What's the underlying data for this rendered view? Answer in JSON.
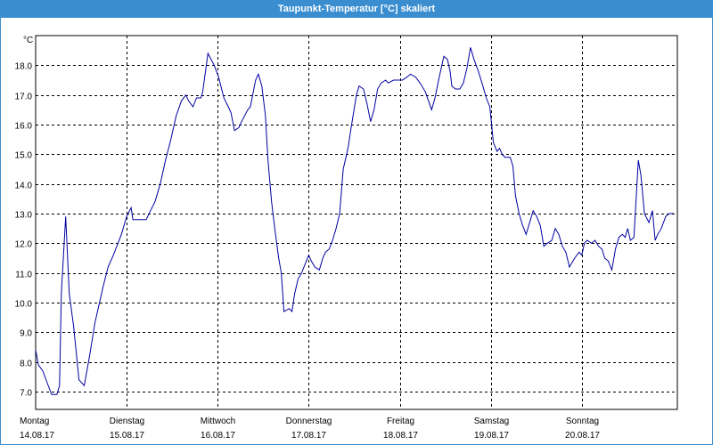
{
  "window": {
    "title": "Taupunkt-Temperatur [°C] skaliert"
  },
  "colors": {
    "titlebar": "#3a8ed0",
    "series": "#0000a0",
    "grid": "#000000"
  },
  "chart_data": {
    "type": "line",
    "title": "Taupunkt-Temperatur [°C] skaliert",
    "ylabel": "°C",
    "ylim": [
      6.4,
      19.0
    ],
    "y_ticks": [
      7.0,
      8.0,
      9.0,
      10.0,
      11.0,
      12.0,
      13.0,
      14.0,
      15.0,
      16.0,
      17.0,
      18.0
    ],
    "xlim": [
      0,
      7.05
    ],
    "grid": true,
    "x_ticks": [
      {
        "x": 0,
        "day": "Montag",
        "date": "14.08.17"
      },
      {
        "x": 1,
        "day": "Dienstag",
        "date": "15.08.17"
      },
      {
        "x": 2,
        "day": "Mittwoch",
        "date": "16.08.17"
      },
      {
        "x": 3,
        "day": "Donnerstag",
        "date": "17.08.17"
      },
      {
        "x": 4,
        "day": "Freitag",
        "date": "18.08.17"
      },
      {
        "x": 5,
        "day": "Samstag",
        "date": "19.08.17"
      },
      {
        "x": 6,
        "day": "Sonntag",
        "date": "20.08.17"
      }
    ],
    "series": [
      {
        "points": [
          [
            0.0,
            8.4
          ],
          [
            0.03,
            7.9
          ],
          [
            0.078,
            7.7
          ],
          [
            0.126,
            7.3
          ],
          [
            0.175,
            6.9
          ],
          [
            0.233,
            6.9
          ],
          [
            0.262,
            7.2
          ],
          [
            0.282,
            10.3
          ],
          [
            0.33,
            12.9
          ],
          [
            0.369,
            10.3
          ],
          [
            0.417,
            9.2
          ],
          [
            0.476,
            7.4
          ],
          [
            0.534,
            7.2
          ],
          [
            0.592,
            8.2
          ],
          [
            0.65,
            9.3
          ],
          [
            0.738,
            10.5
          ],
          [
            0.796,
            11.2
          ],
          [
            0.854,
            11.6
          ],
          [
            0.942,
            12.3
          ],
          [
            1.0,
            12.9
          ],
          [
            1.049,
            13.2
          ],
          [
            1.068,
            12.8
          ],
          [
            1.117,
            12.8
          ],
          [
            1.175,
            12.8
          ],
          [
            1.214,
            12.8
          ],
          [
            1.262,
            13.1
          ],
          [
            1.311,
            13.4
          ],
          [
            1.369,
            14.0
          ],
          [
            1.427,
            14.8
          ],
          [
            1.485,
            15.5
          ],
          [
            1.544,
            16.3
          ],
          [
            1.602,
            16.8
          ],
          [
            1.65,
            17.0
          ],
          [
            1.68,
            16.8
          ],
          [
            1.728,
            16.6
          ],
          [
            1.767,
            16.9
          ],
          [
            1.816,
            16.9
          ],
          [
            1.835,
            17.1
          ],
          [
            1.893,
            18.4
          ],
          [
            1.961,
            18.0
          ],
          [
            2.01,
            17.6
          ],
          [
            2.068,
            16.9
          ],
          [
            2.117,
            16.6
          ],
          [
            2.146,
            16.4
          ],
          [
            2.185,
            15.8
          ],
          [
            2.233,
            15.9
          ],
          [
            2.262,
            16.1
          ],
          [
            2.33,
            16.5
          ],
          [
            2.359,
            16.6
          ],
          [
            2.417,
            17.5
          ],
          [
            2.447,
            17.7
          ],
          [
            2.485,
            17.3
          ],
          [
            2.524,
            16.3
          ],
          [
            2.553,
            14.8
          ],
          [
            2.592,
            13.4
          ],
          [
            2.631,
            12.4
          ],
          [
            2.67,
            11.5
          ],
          [
            2.699,
            11.0
          ],
          [
            2.728,
            9.7
          ],
          [
            2.786,
            9.8
          ],
          [
            2.816,
            9.7
          ],
          [
            2.845,
            10.3
          ],
          [
            2.884,
            10.8
          ],
          [
            2.922,
            11.0
          ],
          [
            2.961,
            11.3
          ],
          [
            3.0,
            11.6
          ],
          [
            3.029,
            11.4
          ],
          [
            3.068,
            11.2
          ],
          [
            3.117,
            11.1
          ],
          [
            3.155,
            11.5
          ],
          [
            3.184,
            11.7
          ],
          [
            3.223,
            11.8
          ],
          [
            3.262,
            12.1
          ],
          [
            3.301,
            12.5
          ],
          [
            3.34,
            13.0
          ],
          [
            3.379,
            14.5
          ],
          [
            3.417,
            15.0
          ],
          [
            3.437,
            15.3
          ],
          [
            3.466,
            15.9
          ],
          [
            3.524,
            17.0
          ],
          [
            3.553,
            17.3
          ],
          [
            3.602,
            17.2
          ],
          [
            3.641,
            16.7
          ],
          [
            3.68,
            16.1
          ],
          [
            3.718,
            16.5
          ],
          [
            3.757,
            17.2
          ],
          [
            3.796,
            17.4
          ],
          [
            3.845,
            17.5
          ],
          [
            3.874,
            17.4
          ],
          [
            3.932,
            17.5
          ],
          [
            4.029,
            17.5
          ],
          [
            4.078,
            17.6
          ],
          [
            4.117,
            17.7
          ],
          [
            4.175,
            17.6
          ],
          [
            4.223,
            17.4
          ],
          [
            4.282,
            17.1
          ],
          [
            4.35,
            16.5
          ],
          [
            4.388,
            16.9
          ],
          [
            4.427,
            17.5
          ],
          [
            4.485,
            18.3
          ],
          [
            4.524,
            18.2
          ],
          [
            4.553,
            17.8
          ],
          [
            4.573,
            17.3
          ],
          [
            4.612,
            17.2
          ],
          [
            4.66,
            17.2
          ],
          [
            4.699,
            17.4
          ],
          [
            4.738,
            17.9
          ],
          [
            4.777,
            18.6
          ],
          [
            4.816,
            18.2
          ],
          [
            4.864,
            17.8
          ],
          [
            4.913,
            17.3
          ],
          [
            4.951,
            16.9
          ],
          [
            4.99,
            16.6
          ],
          [
            5.029,
            15.4
          ],
          [
            5.068,
            15.1
          ],
          [
            5.097,
            15.2
          ],
          [
            5.126,
            15.0
          ],
          [
            5.155,
            14.9
          ],
          [
            5.214,
            14.9
          ],
          [
            5.243,
            14.6
          ],
          [
            5.272,
            13.6
          ],
          [
            5.311,
            13.0
          ],
          [
            5.35,
            12.6
          ],
          [
            5.388,
            12.3
          ],
          [
            5.437,
            12.8
          ],
          [
            5.466,
            13.1
          ],
          [
            5.505,
            12.9
          ],
          [
            5.544,
            12.6
          ],
          [
            5.583,
            11.9
          ],
          [
            5.621,
            12.0
          ],
          [
            5.67,
            12.1
          ],
          [
            5.709,
            12.5
          ],
          [
            5.748,
            12.3
          ],
          [
            5.786,
            11.9
          ],
          [
            5.825,
            11.7
          ],
          [
            5.864,
            11.2
          ],
          [
            5.922,
            11.5
          ],
          [
            5.971,
            11.7
          ],
          [
            6.0,
            11.6
          ],
          [
            6.029,
            12.0
          ],
          [
            6.058,
            12.1
          ],
          [
            6.107,
            12.0
          ],
          [
            6.146,
            12.1
          ],
          [
            6.184,
            11.9
          ],
          [
            6.223,
            11.8
          ],
          [
            6.252,
            11.5
          ],
          [
            6.291,
            11.4
          ],
          [
            6.33,
            11.1
          ],
          [
            6.369,
            11.8
          ],
          [
            6.408,
            12.2
          ],
          [
            6.447,
            12.3
          ],
          [
            6.476,
            12.2
          ],
          [
            6.505,
            12.5
          ],
          [
            6.534,
            12.1
          ],
          [
            6.573,
            12.2
          ],
          [
            6.592,
            13.2
          ],
          [
            6.621,
            14.8
          ],
          [
            6.65,
            14.3
          ],
          [
            6.689,
            13.0
          ],
          [
            6.738,
            12.7
          ],
          [
            6.777,
            13.1
          ],
          [
            6.806,
            12.1
          ],
          [
            6.835,
            12.3
          ],
          [
            6.874,
            12.5
          ],
          [
            6.922,
            12.9
          ],
          [
            6.961,
            13.0
          ],
          [
            7.0,
            13.0
          ],
          [
            7.01,
            13.0
          ]
        ]
      }
    ]
  }
}
